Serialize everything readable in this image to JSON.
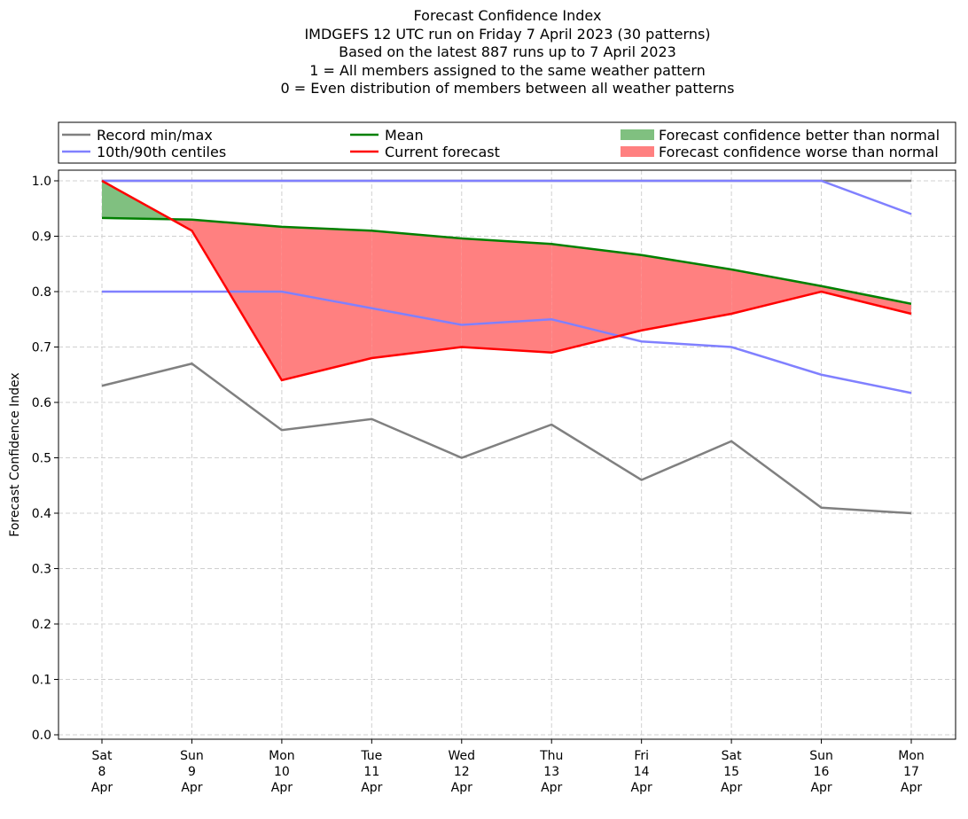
{
  "chart_data": {
    "type": "line",
    "title_lines": [
      "Forecast Confidence Index",
      "IMDGEFS 12 UTC run on Friday 7 April 2023 (30 patterns)",
      "Based on the latest 887 runs up to 7 April 2023",
      "1 = All members assigned to the same weather pattern",
      "0 = Even distribution of members between all weather patterns"
    ],
    "ylabel": "Forecast Confidence Index",
    "ylim": [
      -0.01,
      1.01
    ],
    "yticks": [
      "0.0",
      "0.1",
      "0.2",
      "0.3",
      "0.4",
      "0.5",
      "0.6",
      "0.7",
      "0.8",
      "0.9",
      "1.0"
    ],
    "categories": [
      [
        "Sat",
        "8",
        "Apr"
      ],
      [
        "Sun",
        "9",
        "Apr"
      ],
      [
        "Mon",
        "10",
        "Apr"
      ],
      [
        "Tue",
        "11",
        "Apr"
      ],
      [
        "Wed",
        "12",
        "Apr"
      ],
      [
        "Thu",
        "13",
        "Apr"
      ],
      [
        "Fri",
        "14",
        "Apr"
      ],
      [
        "Sat",
        "15",
        "Apr"
      ],
      [
        "Sun",
        "16",
        "Apr"
      ],
      [
        "Mon",
        "17",
        "Apr"
      ]
    ],
    "grid": true,
    "legend_placement": "top, above plot",
    "series": [
      {
        "name": "Record max",
        "color": "#808080",
        "values": [
          1,
          1,
          1,
          1,
          1,
          1,
          1,
          1,
          1,
          1
        ]
      },
      {
        "name": "Record min",
        "color": "#808080",
        "values": [
          0.63,
          0.67,
          0.55,
          0.57,
          0.5,
          0.56,
          0.46,
          0.53,
          0.41,
          0.4
        ]
      },
      {
        "name": "90th centile",
        "color": "#8080ff",
        "values": [
          1,
          1,
          1,
          1,
          1,
          1,
          1,
          1,
          1,
          0.94
        ]
      },
      {
        "name": "10th centile",
        "color": "#8080ff",
        "values": [
          0.8,
          0.8,
          0.8,
          0.77,
          0.74,
          0.75,
          0.71,
          0.7,
          0.65,
          0.617
        ]
      },
      {
        "name": "Mean",
        "color": "#008000",
        "values": [
          0.933,
          0.93,
          0.917,
          0.91,
          0.896,
          0.886,
          0.866,
          0.84,
          0.81,
          0.778
        ]
      },
      {
        "name": "Current forecast",
        "color": "#ff0000",
        "values": [
          1.0,
          0.91,
          0.64,
          0.68,
          0.7,
          0.69,
          0.73,
          0.76,
          0.8,
          0.76
        ]
      }
    ],
    "legend": [
      {
        "label": "Record min/max",
        "color": "#808080",
        "kind": "line"
      },
      {
        "label": "10th/90th centiles",
        "color": "#8080ff",
        "kind": "line"
      },
      {
        "label": "Mean",
        "color": "#008000",
        "kind": "line"
      },
      {
        "label": "Current forecast",
        "color": "#ff0000",
        "kind": "line"
      },
      {
        "label": "Forecast confidence better than normal",
        "color": "#80c080",
        "kind": "patch"
      },
      {
        "label": "Forecast confidence worse than normal",
        "color": "#ff8080",
        "kind": "patch"
      }
    ]
  }
}
